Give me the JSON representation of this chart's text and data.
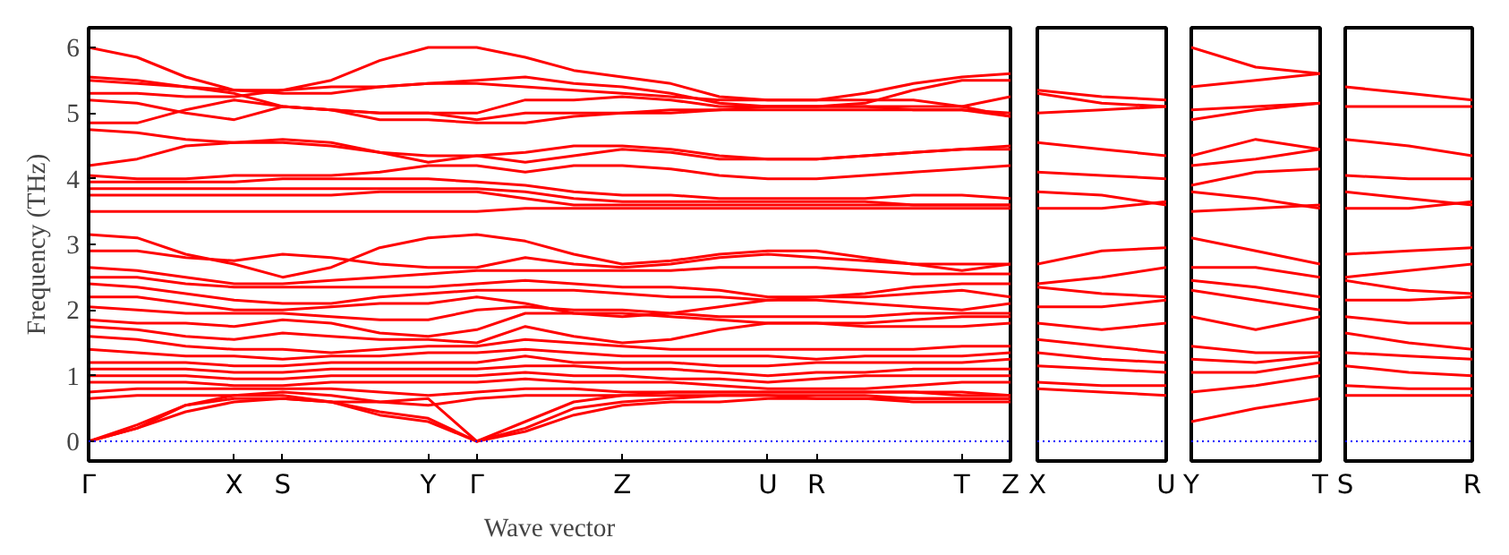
{
  "chart_data": [
    {
      "type": "line",
      "xlabel": "Wave vector",
      "ylabel": "Frequency (THz)",
      "ylim": [
        -0.3,
        6.3
      ],
      "yticks": [
        0,
        1,
        2,
        3,
        4,
        5,
        6
      ],
      "grid": false,
      "line_style": "solid",
      "categories": [
        "Γ",
        null,
        null,
        "X",
        "S",
        null,
        null,
        "Y",
        "Γ",
        null,
        null,
        "Z",
        null,
        null,
        "U",
        "R",
        null,
        null,
        "T",
        "Z"
      ],
      "ref_lines": [
        {
          "axis": "y",
          "value": 0,
          "color": "#0000ff",
          "line_style": "dotted"
        }
      ],
      "series": [
        {
          "color": "#ff0000",
          "values": [
            6.0,
            5.85,
            5.55,
            5.35,
            5.35,
            5.5,
            5.8,
            6.0,
            6.0,
            5.85,
            5.65,
            5.55,
            5.45,
            5.25,
            5.2,
            5.2,
            5.3,
            5.45,
            5.55,
            5.6
          ]
        },
        {
          "color": "#ff0000",
          "values": [
            5.5,
            5.45,
            5.4,
            5.35,
            5.3,
            5.3,
            5.4,
            5.45,
            5.5,
            5.55,
            5.45,
            5.4,
            5.3,
            5.15,
            5.1,
            5.1,
            5.15,
            5.35,
            5.5,
            5.5
          ]
        },
        {
          "color": "#ff0000",
          "values": [
            5.3,
            5.3,
            5.25,
            5.25,
            5.35,
            5.4,
            5.4,
            5.45,
            5.45,
            5.4,
            5.35,
            5.3,
            5.25,
            5.2,
            5.2,
            5.2,
            5.2,
            5.2,
            5.1,
            5.25
          ]
        },
        {
          "color": "#ff0000",
          "values": [
            5.2,
            5.15,
            5.0,
            4.9,
            5.1,
            5.05,
            5.0,
            5.0,
            5.0,
            5.2,
            5.2,
            5.25,
            5.2,
            5.1,
            5.1,
            5.1,
            5.1,
            5.1,
            5.1,
            4.95
          ]
        },
        {
          "color": "#ff0000",
          "values": [
            5.55,
            5.5,
            5.4,
            5.3,
            5.1,
            5.05,
            5.0,
            5.0,
            4.9,
            5.0,
            5.0,
            5.0,
            5.0,
            5.05,
            5.05,
            5.05,
            5.05,
            5.05,
            5.05,
            5.0
          ]
        },
        {
          "color": "#ff0000",
          "values": [
            4.85,
            4.85,
            5.05,
            5.2,
            5.1,
            5.05,
            4.9,
            4.9,
            4.85,
            4.85,
            4.95,
            5.0,
            5.05,
            5.05,
            5.1,
            5.1,
            5.1,
            5.05,
            5.05,
            4.95
          ]
        },
        {
          "color": "#ff0000",
          "values": [
            4.75,
            4.7,
            4.6,
            4.55,
            4.6,
            4.55,
            4.4,
            4.25,
            4.35,
            4.4,
            4.5,
            4.5,
            4.45,
            4.35,
            4.3,
            4.3,
            4.35,
            4.4,
            4.45,
            4.5
          ]
        },
        {
          "color": "#ff0000",
          "values": [
            4.2,
            4.3,
            4.5,
            4.55,
            4.55,
            4.5,
            4.4,
            4.35,
            4.35,
            4.25,
            4.35,
            4.45,
            4.4,
            4.3,
            4.3,
            4.3,
            4.35,
            4.4,
            4.45,
            4.45
          ]
        },
        {
          "color": "#ff0000",
          "values": [
            4.05,
            4.0,
            4.0,
            4.05,
            4.05,
            4.05,
            4.1,
            4.2,
            4.2,
            4.1,
            4.2,
            4.2,
            4.15,
            4.05,
            4.0,
            4.0,
            4.05,
            4.1,
            4.15,
            4.2
          ]
        },
        {
          "color": "#ff0000",
          "values": [
            3.95,
            3.95,
            3.95,
            3.95,
            4.0,
            4.0,
            4.0,
            4.0,
            3.95,
            3.9,
            3.8,
            3.75,
            3.75,
            3.7,
            3.7,
            3.7,
            3.7,
            3.75,
            3.75,
            3.7
          ]
        },
        {
          "color": "#ff0000",
          "values": [
            3.85,
            3.85,
            3.85,
            3.85,
            3.85,
            3.85,
            3.85,
            3.85,
            3.85,
            3.8,
            3.7,
            3.65,
            3.65,
            3.65,
            3.65,
            3.65,
            3.65,
            3.6,
            3.6,
            3.6
          ]
        },
        {
          "color": "#ff0000",
          "values": [
            3.75,
            3.75,
            3.75,
            3.75,
            3.75,
            3.75,
            3.8,
            3.8,
            3.8,
            3.7,
            3.6,
            3.6,
            3.6,
            3.6,
            3.6,
            3.6,
            3.6,
            3.6,
            3.6,
            3.6
          ]
        },
        {
          "color": "#ff0000",
          "values": [
            3.5,
            3.5,
            3.5,
            3.5,
            3.5,
            3.5,
            3.5,
            3.5,
            3.5,
            3.55,
            3.55,
            3.55,
            3.55,
            3.55,
            3.55,
            3.55,
            3.55,
            3.55,
            3.55,
            3.55
          ]
        },
        {
          "color": "#ff0000",
          "values": [
            3.15,
            3.1,
            2.85,
            2.7,
            2.5,
            2.65,
            2.95,
            3.1,
            3.15,
            3.05,
            2.85,
            2.7,
            2.75,
            2.85,
            2.9,
            2.9,
            2.8,
            2.7,
            2.6,
            2.7
          ]
        },
        {
          "color": "#ff0000",
          "values": [
            2.9,
            2.9,
            2.8,
            2.75,
            2.85,
            2.8,
            2.7,
            2.65,
            2.65,
            2.8,
            2.7,
            2.65,
            2.7,
            2.8,
            2.85,
            2.8,
            2.75,
            2.7,
            2.7,
            2.7
          ]
        },
        {
          "color": "#ff0000",
          "values": [
            2.65,
            2.6,
            2.5,
            2.4,
            2.4,
            2.45,
            2.5,
            2.55,
            2.6,
            2.6,
            2.6,
            2.6,
            2.6,
            2.65,
            2.65,
            2.65,
            2.6,
            2.55,
            2.55,
            2.55
          ]
        },
        {
          "color": "#ff0000",
          "values": [
            2.5,
            2.5,
            2.4,
            2.35,
            2.35,
            2.35,
            2.35,
            2.35,
            2.4,
            2.45,
            2.4,
            2.35,
            2.35,
            2.3,
            2.2,
            2.2,
            2.25,
            2.35,
            2.4,
            2.4
          ]
        },
        {
          "color": "#ff0000",
          "values": [
            2.4,
            2.35,
            2.25,
            2.15,
            2.1,
            2.1,
            2.2,
            2.25,
            2.3,
            2.3,
            2.3,
            2.25,
            2.2,
            2.2,
            2.15,
            2.2,
            2.2,
            2.25,
            2.3,
            2.2
          ]
        },
        {
          "color": "#ff0000",
          "values": [
            2.2,
            2.2,
            2.1,
            2.0,
            2.0,
            2.05,
            2.1,
            2.1,
            2.2,
            2.1,
            1.95,
            1.9,
            1.95,
            2.05,
            2.15,
            2.15,
            2.1,
            2.05,
            2.0,
            2.1
          ]
        },
        {
          "color": "#ff0000",
          "values": [
            2.05,
            2.0,
            1.95,
            1.95,
            1.95,
            1.9,
            1.85,
            1.85,
            2.0,
            2.05,
            2.0,
            2.0,
            1.95,
            1.9,
            1.9,
            1.9,
            1.9,
            1.95,
            1.95,
            1.95
          ]
        },
        {
          "color": "#ff0000",
          "values": [
            1.85,
            1.8,
            1.8,
            1.75,
            1.85,
            1.8,
            1.65,
            1.6,
            1.7,
            1.95,
            1.95,
            1.95,
            1.9,
            1.85,
            1.8,
            1.8,
            1.75,
            1.75,
            1.75,
            1.8
          ]
        },
        {
          "color": "#ff0000",
          "values": [
            1.75,
            1.7,
            1.6,
            1.55,
            1.65,
            1.6,
            1.55,
            1.55,
            1.5,
            1.75,
            1.6,
            1.5,
            1.55,
            1.7,
            1.8,
            1.8,
            1.8,
            1.85,
            1.9,
            1.9
          ]
        },
        {
          "color": "#ff0000",
          "values": [
            1.6,
            1.55,
            1.45,
            1.4,
            1.4,
            1.35,
            1.4,
            1.45,
            1.45,
            1.55,
            1.5,
            1.45,
            1.4,
            1.4,
            1.4,
            1.4,
            1.4,
            1.4,
            1.45,
            1.45
          ]
        },
        {
          "color": "#ff0000",
          "values": [
            1.4,
            1.35,
            1.3,
            1.3,
            1.25,
            1.3,
            1.3,
            1.35,
            1.35,
            1.4,
            1.35,
            1.3,
            1.3,
            1.3,
            1.3,
            1.25,
            1.3,
            1.3,
            1.3,
            1.35
          ]
        },
        {
          "color": "#ff0000",
          "values": [
            1.2,
            1.2,
            1.2,
            1.15,
            1.15,
            1.2,
            1.2,
            1.2,
            1.2,
            1.3,
            1.2,
            1.2,
            1.2,
            1.15,
            1.15,
            1.2,
            1.2,
            1.2,
            1.2,
            1.25
          ]
        },
        {
          "color": "#ff0000",
          "values": [
            1.1,
            1.1,
            1.1,
            1.05,
            1.05,
            1.1,
            1.1,
            1.1,
            1.1,
            1.15,
            1.15,
            1.1,
            1.1,
            1.05,
            1.0,
            1.05,
            1.05,
            1.1,
            1.1,
            1.1
          ]
        },
        {
          "color": "#ff0000",
          "values": [
            1.0,
            1.0,
            1.0,
            0.95,
            0.95,
            1.0,
            1.0,
            1.0,
            1.0,
            1.05,
            1.0,
            1.0,
            0.95,
            0.95,
            0.9,
            0.95,
            1.0,
            1.0,
            1.0,
            1.0
          ]
        },
        {
          "color": "#ff0000",
          "values": [
            0.9,
            0.9,
            0.9,
            0.85,
            0.85,
            0.9,
            0.9,
            0.9,
            0.9,
            0.95,
            0.9,
            0.9,
            0.9,
            0.85,
            0.8,
            0.8,
            0.8,
            0.85,
            0.9,
            0.9
          ]
        },
        {
          "color": "#ff0000",
          "values": [
            0.75,
            0.8,
            0.8,
            0.8,
            0.8,
            0.8,
            0.75,
            0.7,
            0.75,
            0.8,
            0.8,
            0.75,
            0.75,
            0.75,
            0.75,
            0.75,
            0.75,
            0.75,
            0.75,
            0.7
          ]
        },
        {
          "color": "#ff0000",
          "values": [
            0.65,
            0.7,
            0.7,
            0.7,
            0.75,
            0.7,
            0.6,
            0.55,
            0.65,
            0.7,
            0.7,
            0.7,
            0.7,
            0.7,
            0.7,
            0.65,
            0.65,
            0.65,
            0.65,
            0.65
          ]
        },
        {
          "color": "#ff0000",
          "values": [
            0,
            0.25,
            0.55,
            0.65,
            0.65,
            0.6,
            0.45,
            0.35,
            0,
            0.3,
            0.6,
            0.7,
            0.75,
            0.75,
            0.75,
            0.75,
            0.75,
            0.75,
            0.7,
            0.7
          ]
        },
        {
          "color": "#ff0000",
          "values": [
            0,
            0.2,
            0.55,
            0.7,
            0.7,
            0.6,
            0.4,
            0.3,
            0,
            0.2,
            0.5,
            0.6,
            0.65,
            0.7,
            0.7,
            0.7,
            0.7,
            0.65,
            0.65,
            0.65
          ]
        },
        {
          "color": "#ff0000",
          "values": [
            0,
            0.2,
            0.45,
            0.6,
            0.65,
            0.6,
            0.6,
            0.65,
            0,
            0.15,
            0.4,
            0.55,
            0.6,
            0.6,
            0.65,
            0.65,
            0.65,
            0.6,
            0.6,
            0.6
          ]
        }
      ]
    },
    {
      "type": "line",
      "ylim": [
        -0.3,
        6.3
      ],
      "tick_labels": "x",
      "grid": false,
      "line_style": "solid",
      "categories": [
        "X",
        null,
        "U"
      ],
      "ref_lines": [
        {
          "axis": "y",
          "value": 0,
          "color": "#0000ff",
          "line_style": "dotted"
        }
      ],
      "series": [
        {
          "color": "#ff0000",
          "values": [
            5.35,
            5.25,
            5.2
          ]
        },
        {
          "color": "#ff0000",
          "values": [
            5.3,
            5.15,
            5.1
          ]
        },
        {
          "color": "#ff0000",
          "values": [
            5.0,
            5.05,
            5.1
          ]
        },
        {
          "color": "#ff0000",
          "values": [
            4.55,
            4.45,
            4.35
          ]
        },
        {
          "color": "#ff0000",
          "values": [
            4.1,
            4.05,
            4.0
          ]
        },
        {
          "color": "#ff0000",
          "values": [
            3.8,
            3.75,
            3.6
          ]
        },
        {
          "color": "#ff0000",
          "values": [
            3.55,
            3.55,
            3.65
          ]
        },
        {
          "color": "#ff0000",
          "values": [
            2.7,
            2.9,
            2.95
          ]
        },
        {
          "color": "#ff0000",
          "values": [
            2.4,
            2.5,
            2.65
          ]
        },
        {
          "color": "#ff0000",
          "values": [
            2.35,
            2.25,
            2.2
          ]
        },
        {
          "color": "#ff0000",
          "values": [
            2.05,
            2.05,
            2.15
          ]
        },
        {
          "color": "#ff0000",
          "values": [
            1.8,
            1.7,
            1.8
          ]
        },
        {
          "color": "#ff0000",
          "values": [
            1.55,
            1.45,
            1.35
          ]
        },
        {
          "color": "#ff0000",
          "values": [
            1.35,
            1.25,
            1.2
          ]
        },
        {
          "color": "#ff0000",
          "values": [
            1.15,
            1.1,
            1.05
          ]
        },
        {
          "color": "#ff0000",
          "values": [
            0.9,
            0.85,
            0.85
          ]
        },
        {
          "color": "#ff0000",
          "values": [
            0.8,
            0.75,
            0.7
          ]
        }
      ]
    },
    {
      "type": "line",
      "ylim": [
        -0.3,
        6.3
      ],
      "tick_labels": "x",
      "grid": false,
      "line_style": "solid",
      "categories": [
        "Y",
        null,
        "T"
      ],
      "ref_lines": [
        {
          "axis": "y",
          "value": 0,
          "color": "#0000ff",
          "line_style": "dotted"
        }
      ],
      "series": [
        {
          "color": "#ff0000",
          "values": [
            6.0,
            5.7,
            5.6
          ]
        },
        {
          "color": "#ff0000",
          "values": [
            5.4,
            5.5,
            5.6
          ]
        },
        {
          "color": "#ff0000",
          "values": [
            5.05,
            5.1,
            5.15
          ]
        },
        {
          "color": "#ff0000",
          "values": [
            4.9,
            5.05,
            5.15
          ]
        },
        {
          "color": "#ff0000",
          "values": [
            4.35,
            4.6,
            4.45
          ]
        },
        {
          "color": "#ff0000",
          "values": [
            4.2,
            4.3,
            4.45
          ]
        },
        {
          "color": "#ff0000",
          "values": [
            3.9,
            4.1,
            4.15
          ]
        },
        {
          "color": "#ff0000",
          "values": [
            3.8,
            3.7,
            3.55
          ]
        },
        {
          "color": "#ff0000",
          "values": [
            3.5,
            3.55,
            3.6
          ]
        },
        {
          "color": "#ff0000",
          "values": [
            3.1,
            2.9,
            2.7
          ]
        },
        {
          "color": "#ff0000",
          "values": [
            2.65,
            2.65,
            2.5
          ]
        },
        {
          "color": "#ff0000",
          "values": [
            2.45,
            2.35,
            2.2
          ]
        },
        {
          "color": "#ff0000",
          "values": [
            2.3,
            2.15,
            2.0
          ]
        },
        {
          "color": "#ff0000",
          "values": [
            1.9,
            1.7,
            1.9
          ]
        },
        {
          "color": "#ff0000",
          "values": [
            1.45,
            1.35,
            1.35
          ]
        },
        {
          "color": "#ff0000",
          "values": [
            1.25,
            1.2,
            1.3
          ]
        },
        {
          "color": "#ff0000",
          "values": [
            1.05,
            1.05,
            1.2
          ]
        },
        {
          "color": "#ff0000",
          "values": [
            0.75,
            0.85,
            1.0
          ]
        },
        {
          "color": "#ff0000",
          "values": [
            0.3,
            0.5,
            0.65
          ]
        }
      ]
    },
    {
      "type": "line",
      "ylim": [
        -0.3,
        6.3
      ],
      "tick_labels": "x",
      "grid": false,
      "line_style": "solid",
      "categories": [
        "S",
        null,
        "R"
      ],
      "ref_lines": [
        {
          "axis": "y",
          "value": 0,
          "color": "#0000ff",
          "line_style": "dotted"
        }
      ],
      "series": [
        {
          "color": "#ff0000",
          "values": [
            5.4,
            5.3,
            5.2
          ]
        },
        {
          "color": "#ff0000",
          "values": [
            5.1,
            5.1,
            5.1
          ]
        },
        {
          "color": "#ff0000",
          "values": [
            4.6,
            4.5,
            4.35
          ]
        },
        {
          "color": "#ff0000",
          "values": [
            4.05,
            4.0,
            4.0
          ]
        },
        {
          "color": "#ff0000",
          "values": [
            3.8,
            3.7,
            3.6
          ]
        },
        {
          "color": "#ff0000",
          "values": [
            3.55,
            3.55,
            3.65
          ]
        },
        {
          "color": "#ff0000",
          "values": [
            2.85,
            2.9,
            2.95
          ]
        },
        {
          "color": "#ff0000",
          "values": [
            2.5,
            2.6,
            2.7
          ]
        },
        {
          "color": "#ff0000",
          "values": [
            2.45,
            2.3,
            2.25
          ]
        },
        {
          "color": "#ff0000",
          "values": [
            2.15,
            2.15,
            2.2
          ]
        },
        {
          "color": "#ff0000",
          "values": [
            1.9,
            1.8,
            1.8
          ]
        },
        {
          "color": "#ff0000",
          "values": [
            1.65,
            1.5,
            1.4
          ]
        },
        {
          "color": "#ff0000",
          "values": [
            1.35,
            1.3,
            1.25
          ]
        },
        {
          "color": "#ff0000",
          "values": [
            1.15,
            1.05,
            1.0
          ]
        },
        {
          "color": "#ff0000",
          "values": [
            0.85,
            0.8,
            0.8
          ]
        },
        {
          "color": "#ff0000",
          "values": [
            0.7,
            0.7,
            0.7
          ]
        }
      ]
    }
  ]
}
